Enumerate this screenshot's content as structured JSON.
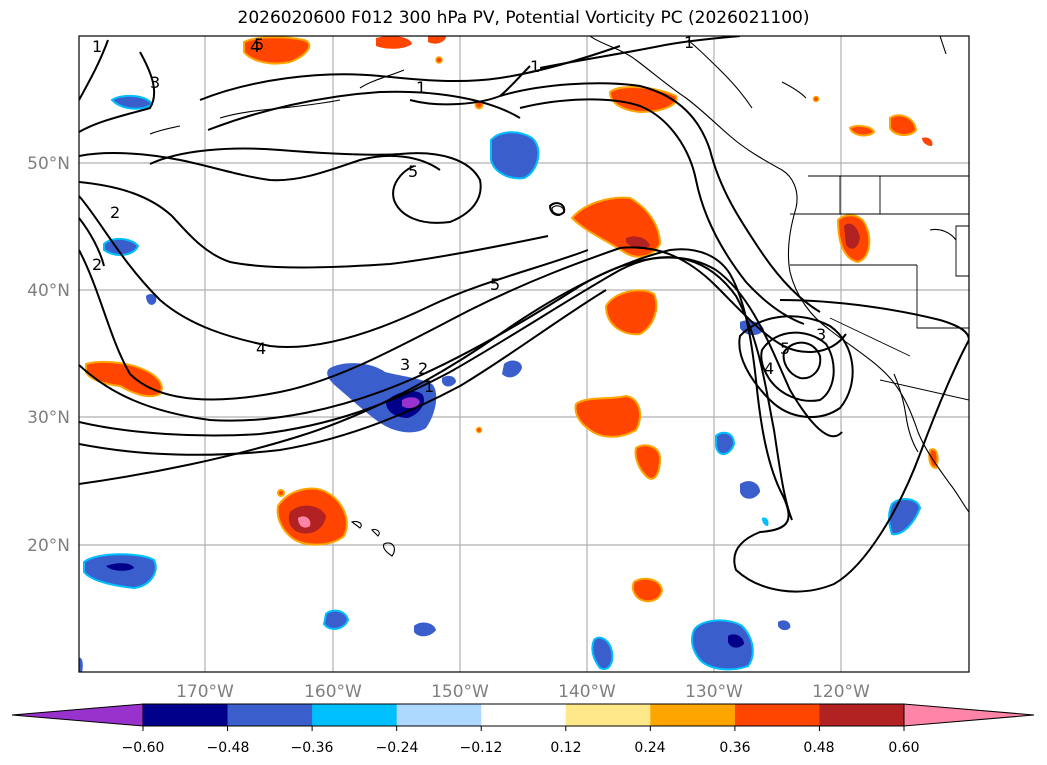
{
  "title": "2026020600 F012 300 hPa PV, Potential Vorticity PC (2026021100)",
  "map": {
    "lon_labels": [
      "170°W",
      "160°W",
      "150°W",
      "140°W",
      "130°W",
      "120°W"
    ],
    "lat_labels": [
      "50°N",
      "40°N",
      "30°N",
      "20°N"
    ],
    "contour_labels": [
      "2",
      "3",
      "1",
      "1",
      "1",
      "5",
      "4",
      "2",
      "1",
      "5",
      "4",
      "5",
      "3",
      "2",
      "1",
      "3",
      "5",
      "4"
    ]
  },
  "colorbar": {
    "ticks": [
      "−0.60",
      "−0.48",
      "−0.36",
      "−0.24",
      "−0.12",
      "0.12",
      "0.24",
      "0.36",
      "0.48",
      "0.60"
    ],
    "colors": [
      "#9932cc",
      "#00008b",
      "#3a5fcd",
      "#00bfff",
      "#add8ff",
      "#ffffff",
      "#ffe88a",
      "#ffa500",
      "#ff4500",
      "#b22222",
      "#ff85a8"
    ]
  }
}
